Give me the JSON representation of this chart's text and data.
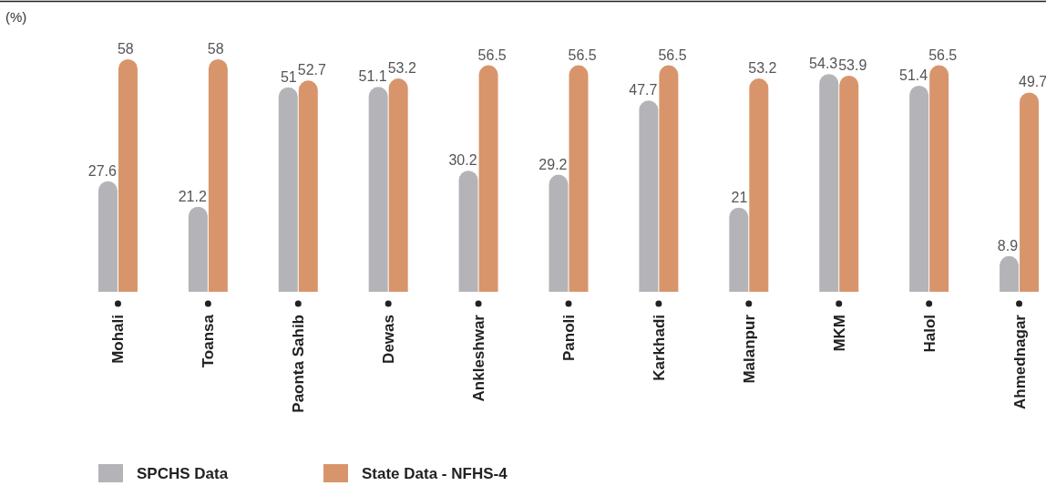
{
  "chart_data": {
    "type": "bar",
    "ylabel": "(%)",
    "categories": [
      "Mohali",
      "Toansa",
      "Paonta Sahib",
      "Dewas",
      "Ankleshwar",
      "Panoli",
      "Karkhadi",
      "Malanpur",
      "MKM",
      "Halol",
      "Ahmednagar"
    ],
    "series": [
      {
        "name": "SPCHS Data",
        "color": "#b4b4b8",
        "values": [
          27.6,
          21.2,
          51,
          51.1,
          30.2,
          29.2,
          47.7,
          21,
          54.3,
          51.4,
          8.9
        ]
      },
      {
        "name": "State Data - NFHS-4",
        "color": "#d8956b",
        "values": [
          58,
          58,
          52.7,
          53.2,
          56.5,
          56.5,
          56.5,
          53.2,
          53.9,
          56.5,
          49.7
        ]
      }
    ],
    "data_labels": true,
    "legend": "bottom",
    "grid": false
  }
}
